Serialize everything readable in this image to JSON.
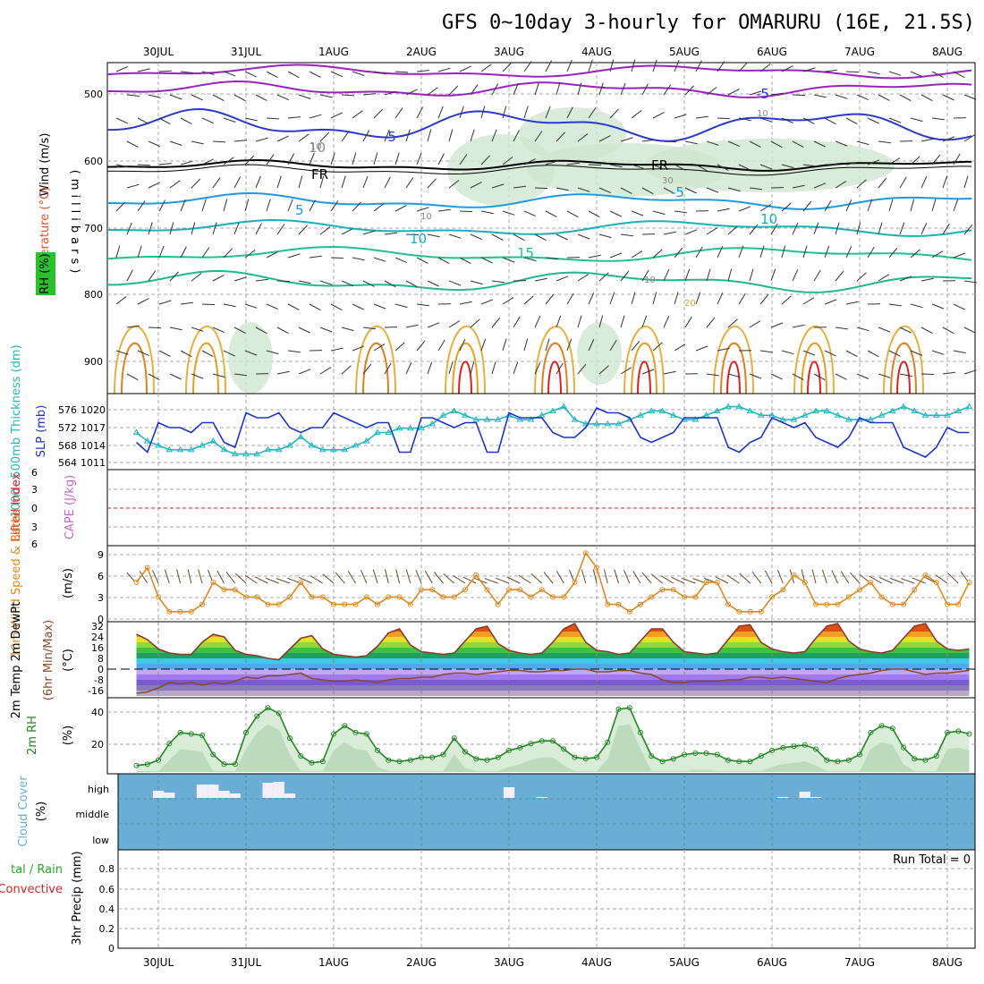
{
  "title": "GFS 0~10day 3-hourly for OMARURU (16E, 21.5S)",
  "dates": [
    "30JUL",
    "31JUL",
    "1AUG",
    "2AUG",
    "3AUG",
    "4AUG",
    "5AUG",
    "6AUG",
    "7AUG",
    "8AUG"
  ],
  "colors": {
    "temp_label": "#e8502a",
    "wind_label": "#3050e0",
    "rh_label": "#22aa22",
    "slp": "#1a35d0",
    "thickness": "#22b8c0",
    "lifted": "#dd2222",
    "cape": "#cc66cc",
    "wind10": "#e08a20",
    "dew": "#8a4a2a",
    "rh2m": "#228822",
    "cloud_bg": "#6aaed6",
    "cloud_fill": "#f3eef7"
  },
  "panels": {
    "upper": {
      "label_wind": "Wind (m/s)",
      "label_temp": "Temperature (°C)",
      "label_rh": "RH (%)",
      "label_mb": "(millibars)",
      "yticks": [
        "500",
        "600",
        "700",
        "800",
        "900"
      ],
      "contour_labels": [
        "-5",
        "-5",
        "10",
        "FR",
        "FR",
        "-5",
        "5",
        "10",
        "10",
        "15",
        "30",
        "20",
        "10",
        "10",
        "10",
        "10"
      ]
    },
    "slp_thick": {
      "label_thickness": "1000~500mb Thickness (dm)",
      "label_slp": "SLP (mb)",
      "left_ticks": [
        "576",
        "572",
        "568",
        "564"
      ],
      "right_ticks": [
        "1020",
        "1017",
        "1014",
        "1011"
      ]
    },
    "cape_li": {
      "label_li": "Lifted Index",
      "label_cape": "CAPE (J/kg)",
      "left_ticks": [
        "6",
        "3",
        "0",
        "3",
        "6"
      ]
    },
    "wind10": {
      "label": "10m Wind Speed & Barbs",
      "label_unit": "(m/s)",
      "ticks": [
        "9",
        "6",
        "3",
        "0"
      ]
    },
    "temp2m": {
      "label": "2m Temp 2m DewPt",
      "label_sub": "(6hr Min/Max)",
      "label_unit": "(°C)",
      "ticks": [
        "32",
        "24",
        "16",
        "8",
        "0",
        "-8",
        "-16"
      ]
    },
    "rh2m": {
      "label": "2m RH",
      "label_unit": "(%)",
      "ticks": [
        "40",
        "20"
      ]
    },
    "cloud": {
      "label": "Cloud Cover",
      "label_unit": "(%)",
      "levels": [
        "high",
        "middle",
        "low"
      ]
    },
    "precip": {
      "label_left1": "tal / Rain",
      "label_left2": "Convective",
      "label": "3hr Precip (mm)",
      "ticks": [
        "0.8",
        "0.6",
        "0.4",
        "0.2",
        "0"
      ],
      "run_total": "Run Total = 0"
    }
  },
  "chart_data": [
    {
      "type": "line",
      "title": "SLP (mb)",
      "x": [
        "29JUL18",
        "29JUL21",
        "30JUL00",
        "30JUL03",
        "30JUL06",
        "30JUL09",
        "30JUL12",
        "30JUL15",
        "30JUL18",
        "30JUL21",
        "31JUL00",
        "31JUL03",
        "31JUL06",
        "31JUL09",
        "31JUL12",
        "31JUL15",
        "31JUL18",
        "31JUL21",
        "1AUG00",
        "1AUG03",
        "1AUG06",
        "1AUG09",
        "1AUG12",
        "1AUG15",
        "1AUG18",
        "1AUG21",
        "2AUG00",
        "2AUG03",
        "2AUG06",
        "2AUG09",
        "2AUG12",
        "2AUG15",
        "2AUG18",
        "2AUG21",
        "3AUG00",
        "3AUG03",
        "3AUG06",
        "3AUG09",
        "3AUG12",
        "3AUG15",
        "3AUG18",
        "3AUG21",
        "4AUG00",
        "4AUG03",
        "4AUG06",
        "4AUG09",
        "4AUG12",
        "4AUG15",
        "4AUG18",
        "4AUG21",
        "5AUG00",
        "5AUG03",
        "5AUG06",
        "5AUG09",
        "5AUG12",
        "5AUG15",
        "5AUG18",
        "5AUG21",
        "6AUG00",
        "6AUG03",
        "6AUG06",
        "6AUG09",
        "6AUG12",
        "6AUG15",
        "6AUG18",
        "6AUG21",
        "7AUG00",
        "7AUG03",
        "7AUG06",
        "7AUG09",
        "7AUG12",
        "7AUG15",
        "7AUG18",
        "7AUG21",
        "8AUG00",
        "8AUG03",
        "8AUG06"
      ],
      "series": [
        {
          "name": "SLP (mb)",
          "values": [
            1014,
            1012,
            1018,
            1017,
            1017,
            1016,
            1018,
            1018,
            1014,
            1013,
            1020,
            1019,
            1019,
            1020,
            1017,
            1016,
            1017,
            1017,
            1020,
            1019,
            1018,
            1017,
            1018,
            1018,
            1012,
            1012,
            1019,
            1019,
            1018,
            1017,
            1018,
            1018,
            1012,
            1012,
            1020,
            1019,
            1019,
            1019,
            1016,
            1015,
            1015,
            1017,
            1021,
            1020,
            1020,
            1019,
            1015,
            1014,
            1015,
            1016,
            1019,
            1019,
            1019,
            1019,
            1013,
            1012,
            1014,
            1015,
            1019,
            1018,
            1017,
            1018,
            1015,
            1014,
            1013,
            1015,
            1019,
            1018,
            1018,
            1018,
            1013,
            1012,
            1011,
            1013,
            1017,
            1016,
            1016
          ]
        },
        {
          "name": "1000~500mb Thickness (dm)",
          "values": [
            570,
            568,
            567,
            566,
            566,
            566,
            567,
            568,
            566,
            565,
            565,
            565,
            566,
            566,
            567,
            569,
            567,
            566,
            566,
            566,
            567,
            568,
            570,
            570,
            571,
            571,
            571,
            572,
            574,
            575,
            574,
            573,
            573,
            573,
            574,
            573,
            573,
            574,
            575,
            576,
            573,
            572,
            572,
            572,
            572,
            573,
            574,
            575,
            575,
            574,
            573,
            573,
            574,
            575,
            576,
            576,
            575,
            574,
            574,
            573,
            573,
            574,
            575,
            575,
            574,
            573,
            573,
            573,
            574,
            575,
            576,
            575,
            574,
            574,
            574,
            575,
            576
          ]
        }
      ],
      "ylim": [
        1010,
        1022
      ]
    },
    {
      "type": "line",
      "title": "10m Wind Speed & Barbs",
      "ylabel": "(m/s)",
      "series": [
        {
          "name": "10m Wind Speed",
          "values": [
            5,
            7,
            3,
            1,
            1,
            1,
            2,
            5,
            4,
            4,
            3,
            3,
            2,
            2,
            3,
            5,
            3,
            3,
            2,
            2,
            2,
            3,
            2,
            3,
            3,
            2,
            4,
            4,
            3,
            3,
            4,
            6,
            4,
            2,
            4,
            4,
            3,
            4,
            3,
            3,
            5,
            9,
            7,
            2,
            2,
            1,
            2,
            3,
            4,
            4,
            3,
            3,
            5,
            5,
            2,
            1,
            1,
            1,
            3,
            4,
            6,
            5,
            2,
            2,
            2,
            3,
            4,
            5,
            3,
            2,
            2,
            4,
            6,
            5,
            2,
            2,
            5
          ]
        }
      ],
      "ylim": [
        0,
        10
      ]
    },
    {
      "type": "area",
      "title": "2m Temp 2m DewPt",
      "ylabel": "(°C)",
      "series": [
        {
          "name": "2m Temp",
          "values": [
            26,
            22,
            15,
            12,
            11,
            11,
            20,
            26,
            24,
            14,
            11,
            10,
            8,
            7,
            15,
            23,
            25,
            15,
            11,
            10,
            9,
            10,
            17,
            27,
            30,
            18,
            13,
            12,
            11,
            12,
            21,
            30,
            32,
            19,
            14,
            12,
            11,
            12,
            20,
            30,
            34,
            20,
            14,
            13,
            11,
            12,
            21,
            30,
            30,
            20,
            13,
            12,
            11,
            12,
            22,
            32,
            33,
            20,
            15,
            13,
            12,
            13,
            23,
            32,
            34,
            21,
            15,
            13,
            12,
            14,
            23,
            32,
            34,
            21,
            15,
            14,
            15
          ]
        },
        {
          "name": "2m DewPt",
          "values": [
            -18,
            -17,
            -14,
            -10,
            -11,
            -10,
            -12,
            -10,
            -11,
            -9,
            -6,
            -7,
            -5,
            -5,
            -4,
            -3,
            -7,
            -8,
            -9,
            -9,
            -8,
            -9,
            -10,
            -8,
            -7,
            -7,
            -6,
            -6,
            -4,
            -3,
            -3,
            -4,
            -3,
            -2,
            -1,
            -1,
            -2,
            -2,
            -1,
            -1,
            0,
            0,
            -2,
            -2,
            -1,
            -1,
            -3,
            -4,
            -8,
            -10,
            -10,
            -9,
            -9,
            -9,
            -8,
            -8,
            -6,
            -6,
            -7,
            -6,
            -7,
            -8,
            -9,
            -10,
            -7,
            -5,
            -4,
            -3,
            -1,
            0,
            0,
            -2,
            -4,
            -3,
            -3,
            -2,
            -1
          ]
        }
      ],
      "ylim": [
        -20,
        34
      ]
    },
    {
      "type": "area",
      "title": "2m RH",
      "ylabel": "(%)",
      "series": [
        {
          "name": "2m RH",
          "values": [
            4,
            5,
            8,
            20,
            28,
            27,
            26,
            12,
            5,
            5,
            28,
            40,
            46,
            42,
            24,
            11,
            6,
            7,
            27,
            33,
            28,
            27,
            15,
            8,
            7,
            8,
            10,
            10,
            12,
            24,
            14,
            9,
            8,
            10,
            15,
            17,
            20,
            22,
            22,
            16,
            10,
            9,
            10,
            21,
            45,
            46,
            28,
            11,
            7,
            9,
            12,
            13,
            13,
            12,
            8,
            7,
            7,
            11,
            15,
            17,
            18,
            19,
            16,
            8,
            7,
            8,
            12,
            28,
            33,
            31,
            17,
            9,
            8,
            11,
            28,
            29,
            27
          ]
        }
      ],
      "ylim": [
        0,
        52
      ]
    },
    {
      "type": "bar",
      "title": "Cloud Cover",
      "ylabel": "(%)",
      "series": [
        {
          "name": "high",
          "values": [
            0,
            0,
            8,
            6,
            0,
            0,
            15,
            15,
            8,
            5,
            0,
            0,
            17,
            18,
            5,
            0,
            0,
            0,
            0,
            0,
            0,
            0,
            0,
            0,
            0,
            0,
            0,
            0,
            0,
            0,
            0,
            0,
            0,
            0,
            12,
            0,
            0,
            1,
            0,
            0,
            0,
            0,
            0,
            0,
            0,
            0,
            0,
            0,
            0,
            0,
            0,
            0,
            0,
            0,
            0,
            0,
            0,
            0,
            0,
            1,
            0,
            7,
            1,
            0,
            0,
            0,
            0,
            0,
            0,
            0,
            0,
            0,
            0,
            0,
            0,
            0,
            0
          ]
        },
        {
          "name": "middle",
          "values": []
        },
        {
          "name": "low",
          "values": []
        }
      ],
      "ylim": [
        0,
        100
      ]
    },
    {
      "type": "bar",
      "title": "3hr Precip (mm)",
      "series": [
        {
          "name": "3hr Precip",
          "values": []
        }
      ],
      "ylim": [
        0,
        0.9
      ]
    }
  ]
}
